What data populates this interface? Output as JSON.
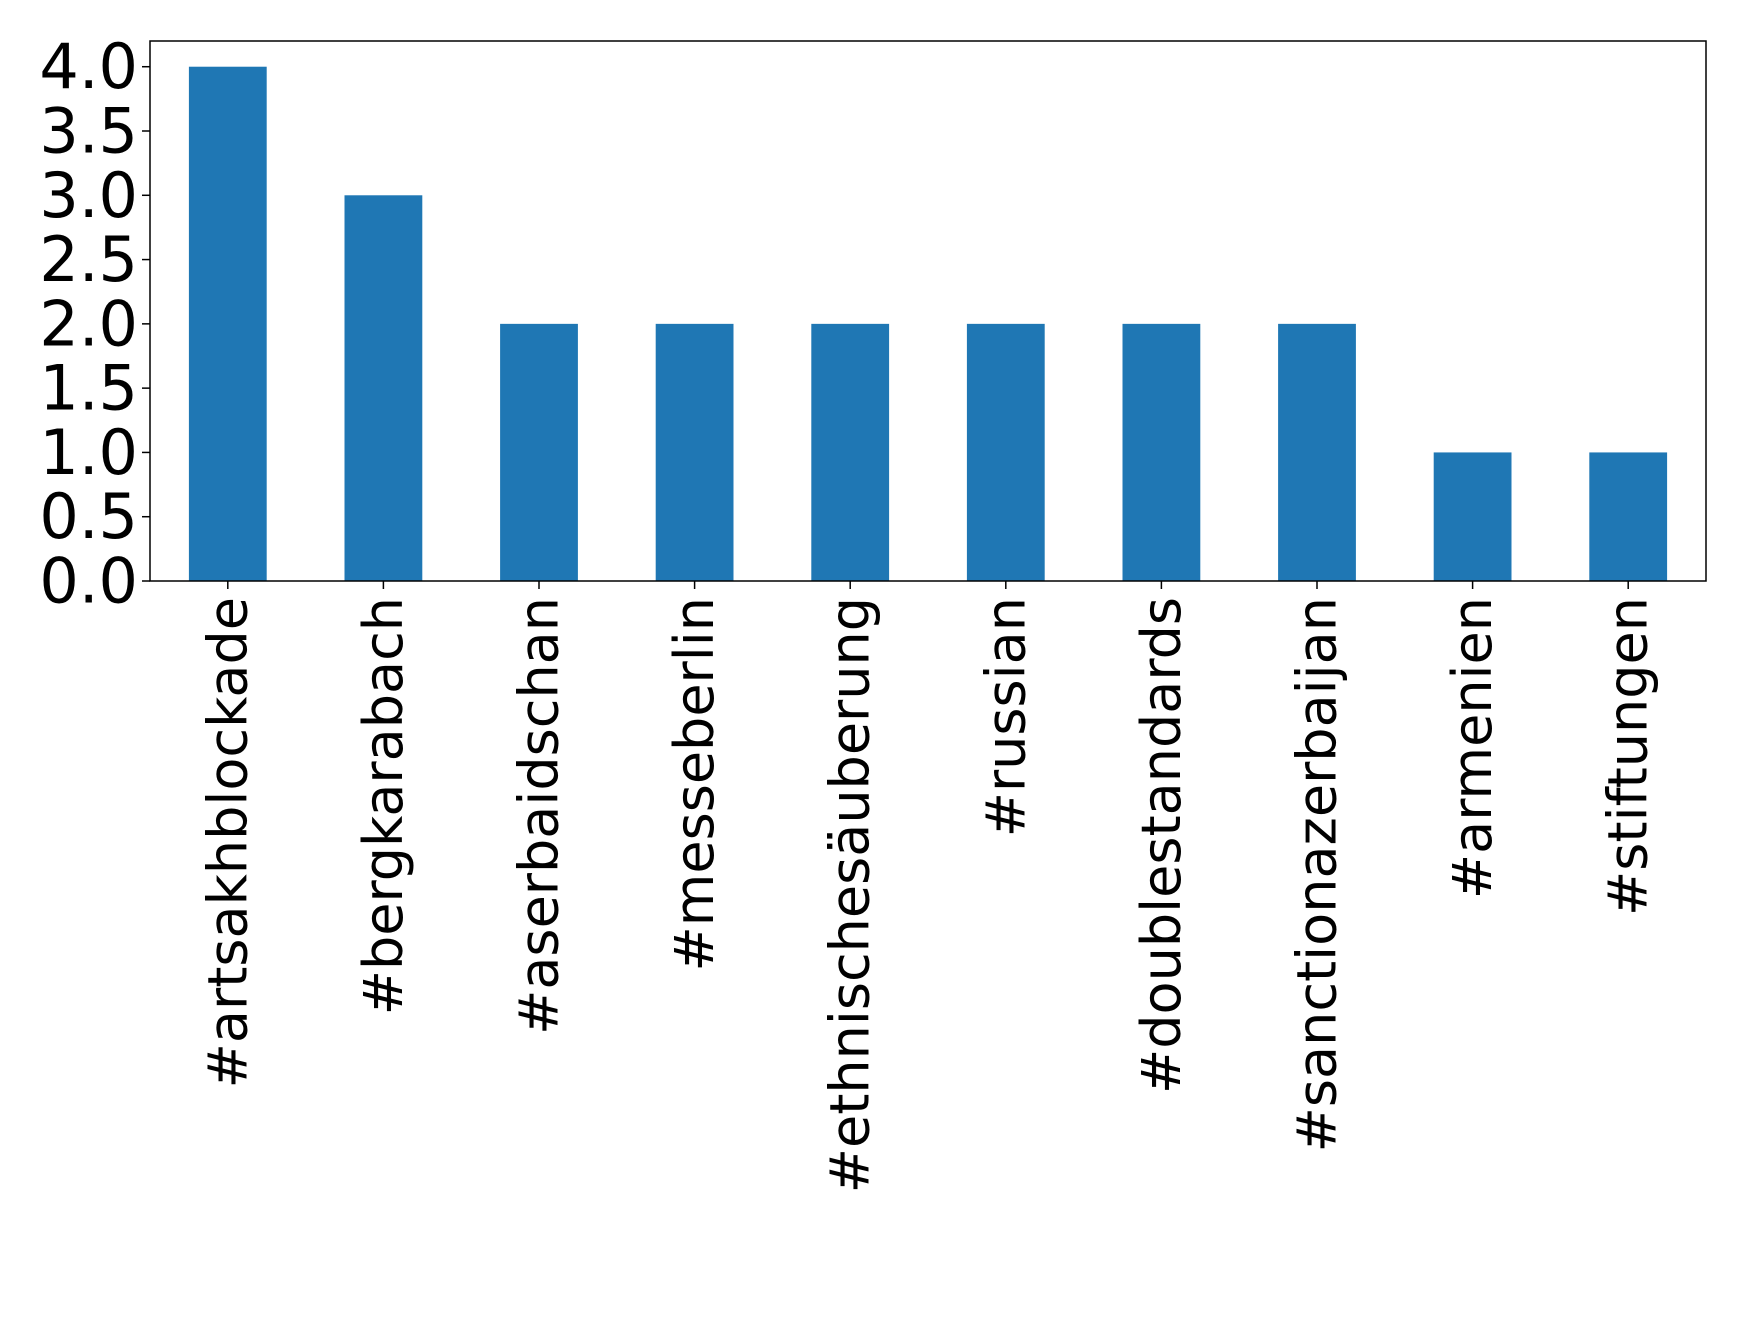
{
  "chart_data": {
    "type": "bar",
    "title": "",
    "xlabel": "",
    "ylabel": "",
    "categories": [
      "#artsakhblockade",
      "#bergkarabach",
      "#aserbaidschan",
      "#messeberlin",
      "#ethnischesäuberung",
      "#russian",
      "#doublestandards",
      "#sanctionazerbaijan",
      "#armenien",
      "#stiftungen"
    ],
    "values": [
      4,
      3,
      2,
      2,
      2,
      2,
      2,
      2,
      1,
      1
    ],
    "ylim": [
      0,
      4.2
    ],
    "yticks": [
      "0.0",
      "0.5",
      "1.0",
      "1.5",
      "2.0",
      "2.5",
      "3.0",
      "3.5",
      "4.0"
    ],
    "ytick_values": [
      0,
      0.5,
      1,
      1.5,
      2,
      2.5,
      3,
      3.5,
      4
    ],
    "bar_color": "#1f77b4",
    "grid": false,
    "legend": "none"
  }
}
